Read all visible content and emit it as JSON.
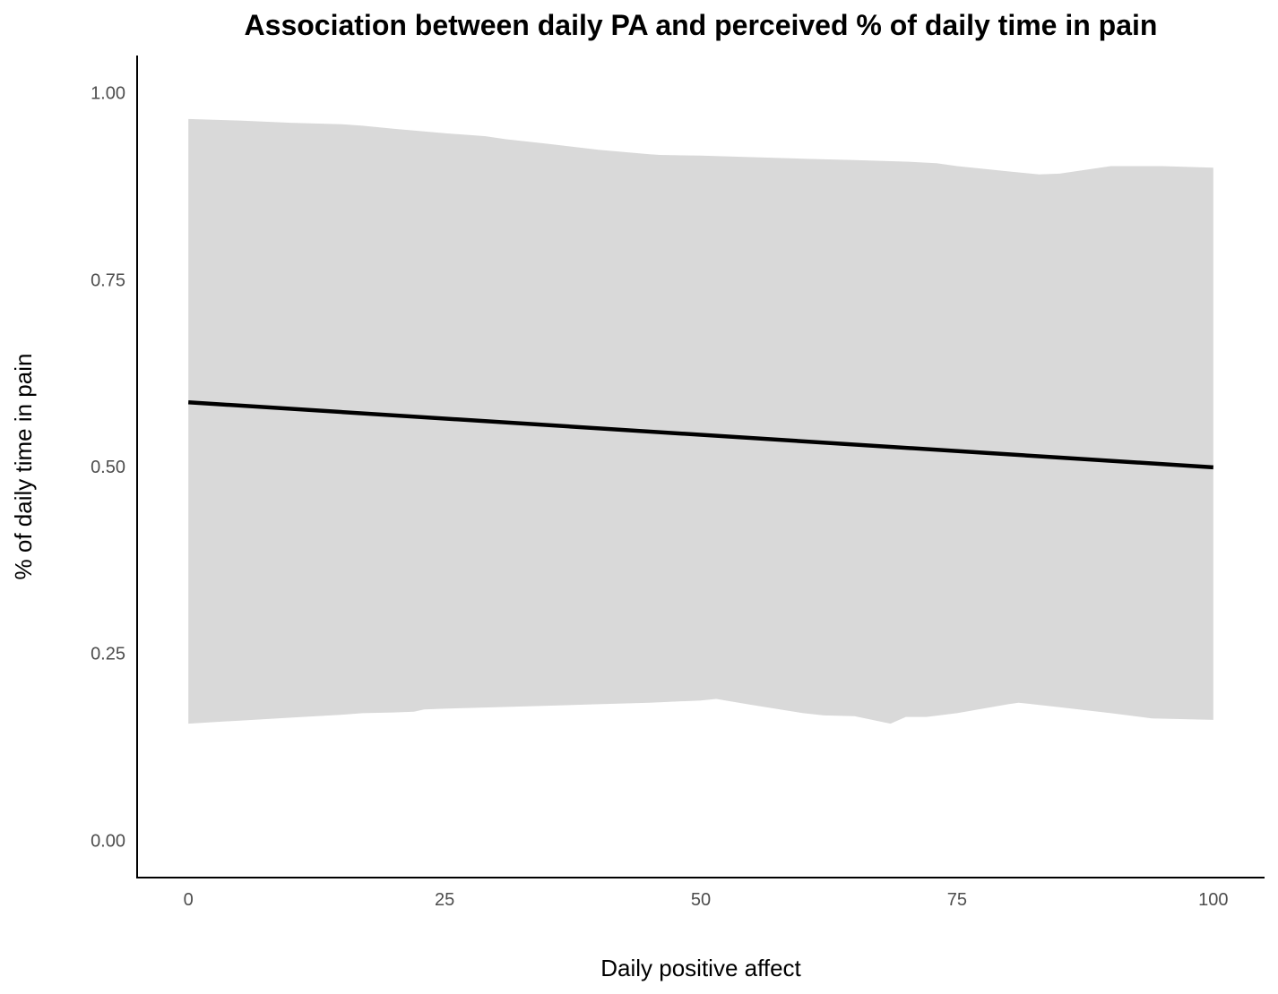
{
  "chart_data": {
    "type": "line",
    "title": "Association between daily PA and perceived % of daily time in pain",
    "xlabel": "Daily positive affect",
    "ylabel": "% of daily time in pain",
    "xlim": [
      -5,
      105
    ],
    "ylim": [
      -0.05,
      1.05
    ],
    "x_ticks": [
      0,
      25,
      50,
      75,
      100
    ],
    "x_tick_labels": [
      "0",
      "25",
      "50",
      "75",
      "100"
    ],
    "y_ticks": [
      0,
      0.25,
      0.5,
      0.75,
      1.0
    ],
    "y_tick_labels": [
      "0.00",
      "0.25",
      "0.50",
      "0.75",
      "1.00"
    ],
    "grid": false,
    "series": [
      {
        "x": [
          0,
          100
        ],
        "y": [
          0.586,
          0.499
        ]
      }
    ],
    "confidence_band": {
      "upper": {
        "x": [
          0,
          5,
          10,
          15,
          17,
          20,
          25,
          28,
          29,
          31,
          35,
          40,
          45,
          46,
          50,
          55,
          60,
          65,
          70,
          73,
          75,
          80,
          83,
          85,
          90,
          95,
          100
        ],
        "y": [
          0.965,
          0.963,
          0.96,
          0.958,
          0.956,
          0.952,
          0.946,
          0.943,
          0.942,
          0.938,
          0.932,
          0.924,
          0.918,
          0.917,
          0.916,
          0.914,
          0.912,
          0.91,
          0.908,
          0.906,
          0.902,
          0.895,
          0.891,
          0.892,
          0.902,
          0.902,
          0.9
        ]
      },
      "lower": {
        "x": [
          0,
          5,
          10,
          15,
          17,
          20,
          22,
          23,
          25,
          30,
          35,
          40,
          45,
          50,
          51.5,
          55,
          60,
          62,
          65,
          68.5,
          70,
          72,
          75,
          80,
          81,
          85,
          90,
          94,
          100
        ],
        "y": [
          0.156,
          0.16,
          0.164,
          0.168,
          0.17,
          0.171,
          0.172,
          0.175,
          0.176,
          0.178,
          0.18,
          0.182,
          0.184,
          0.187,
          0.189,
          0.181,
          0.17,
          0.167,
          0.166,
          0.156,
          0.165,
          0.165,
          0.17,
          0.182,
          0.184,
          0.178,
          0.17,
          0.163,
          0.161
        ]
      }
    },
    "colors": {
      "line": "#000000",
      "band": "#d9d9d9",
      "axis": "#000000",
      "tick_text": "#4d4d4d"
    }
  }
}
